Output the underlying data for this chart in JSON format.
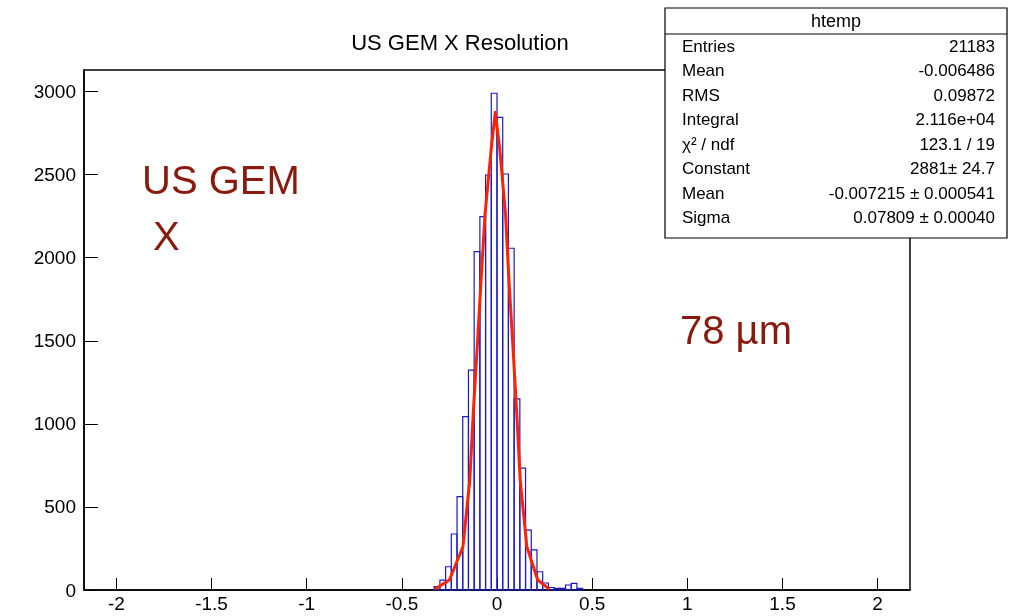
{
  "chart_data": {
    "type": "histogram",
    "title": "US GEM X Resolution",
    "bins": [
      -0.33,
      -0.3,
      -0.27,
      -0.24,
      -0.21,
      -0.18,
      -0.15,
      -0.12,
      -0.09,
      -0.06,
      -0.03,
      0,
      0.03,
      0.06,
      0.09,
      0.12,
      0.15,
      0.18,
      0.21,
      0.24,
      0.27,
      0.3,
      0.33,
      0.36,
      0.39,
      0.42,
      0.45
    ],
    "values": [
      20,
      60,
      140,
      337,
      562,
      1043,
      1324,
      2037,
      2247,
      2498,
      2990,
      2845,
      2504,
      2057,
      1150,
      734,
      361,
      241,
      110,
      42,
      15,
      10,
      10,
      30,
      40,
      10
    ],
    "color": "#1a1acc",
    "series": [
      {
        "type": "line",
        "color": "#ff2200",
        "x": [
          -0.32,
          -0.25,
          -0.179,
          -0.143,
          -0.125,
          -0.104,
          -0.084,
          -0.063,
          -0.03,
          -0.009,
          0.014,
          0.045,
          0.063,
          0.084,
          0.104,
          0.122,
          0.157,
          0.214,
          0.27
        ],
        "values": [
          10,
          60,
          260,
          660,
          1060,
          1460,
          1860,
          2260,
          2660,
          2875,
          2660,
          2260,
          1860,
          1460,
          1060,
          660,
          260,
          60,
          10
        ]
      }
    ],
    "xlim": [
      -2.17,
      2.17
    ],
    "xticks": [
      -2,
      -1.5,
      -1,
      -0.5,
      0,
      0.5,
      1,
      1.5,
      2
    ],
    "ylim": [
      0,
      3130
    ],
    "yticks": [
      0,
      500,
      1000,
      1500,
      2000,
      2500,
      3000
    ],
    "grid": false,
    "marker": "none",
    "line_style": "solid",
    "annotations": [
      "US GEM\n X",
      "78 µm",
      "htemp",
      "Entries",
      "21183",
      "Mean",
      "-0.006486",
      "RMS",
      "0.09872",
      "Integral",
      "2.116e+04",
      "χ² / ndf",
      "123.1 / 19",
      "Constant",
      "2881± 24.7",
      "Mean",
      "-0.007215 ± 0.000541",
      "Sigma",
      "0.07809 ± 0.00040"
    ]
  }
}
